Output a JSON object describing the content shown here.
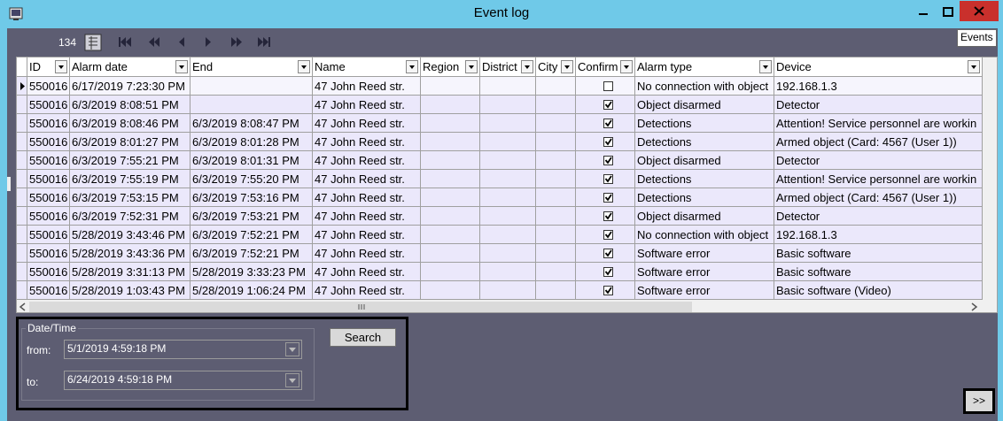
{
  "window": {
    "title": "Event log"
  },
  "toolbar": {
    "count": "134",
    "tooltip": "Events"
  },
  "table": {
    "columns": [
      "ID",
      "Alarm date",
      "End",
      "Name",
      "Region",
      "District",
      "City",
      "Confirm",
      "Alarm type",
      "Device"
    ],
    "rows": [
      [
        "550016",
        "6/17/2019 7:23:30 PM",
        null,
        "47 John Reed str.",
        null,
        null,
        null,
        false,
        "No connection with object",
        "192.168.1.3"
      ],
      [
        "550016",
        "6/3/2019 8:08:51 PM",
        null,
        "47 John Reed str.",
        null,
        null,
        null,
        true,
        "Object disarmed",
        "Detector"
      ],
      [
        "550016",
        "6/3/2019 8:08:46 PM",
        "6/3/2019 8:08:47 PM",
        "47 John Reed str.",
        null,
        null,
        null,
        true,
        "Detections",
        "Attention! Service personnel are workin"
      ],
      [
        "550016",
        "6/3/2019 8:01:27 PM",
        "6/3/2019 8:01:28 PM",
        "47 John Reed str.",
        null,
        null,
        null,
        true,
        "Detections",
        "Armed object (Card: 4567 (User 1))"
      ],
      [
        "550016",
        "6/3/2019 7:55:21 PM",
        "6/3/2019 8:01:31 PM",
        "47 John Reed str.",
        null,
        null,
        null,
        true,
        "Object disarmed",
        "Detector"
      ],
      [
        "550016",
        "6/3/2019 7:55:19 PM",
        "6/3/2019 7:55:20 PM",
        "47 John Reed str.",
        null,
        null,
        null,
        true,
        "Detections",
        "Attention! Service personnel are workin"
      ],
      [
        "550016",
        "6/3/2019 7:53:15 PM",
        "6/3/2019 7:53:16 PM",
        "47 John Reed str.",
        null,
        null,
        null,
        true,
        "Detections",
        "Armed object (Card: 4567 (User 1))"
      ],
      [
        "550016",
        "6/3/2019 7:52:31 PM",
        "6/3/2019 7:53:21 PM",
        "47 John Reed str.",
        null,
        null,
        null,
        true,
        "Object disarmed",
        "Detector"
      ],
      [
        "550016",
        "5/28/2019 3:43:46 PM",
        "6/3/2019 7:52:21 PM",
        "47 John Reed str.",
        null,
        null,
        null,
        true,
        "No connection with object",
        "192.168.1.3"
      ],
      [
        "550016",
        "5/28/2019 3:43:36 PM",
        "6/3/2019 7:52:21 PM",
        "47 John Reed str.",
        null,
        null,
        null,
        true,
        "Software error",
        "Basic software"
      ],
      [
        "550016",
        "5/28/2019 3:31:13 PM",
        "5/28/2019 3:33:23 PM",
        "47 John Reed str.",
        null,
        null,
        null,
        true,
        "Software error",
        "Basic software"
      ],
      [
        "550016",
        "5/28/2019 1:03:43 PM",
        "5/28/2019 1:06:24 PM",
        "47 John Reed str.",
        null,
        null,
        null,
        true,
        "Software error",
        "Basic software (Video)"
      ]
    ]
  },
  "filter": {
    "group_title": "Date/Time",
    "from_label": "from:",
    "from_value": "5/1/2019 4:59:18 PM",
    "to_label": "to:",
    "to_value": "6/24/2019 4:59:18 PM",
    "search_button": "Search"
  },
  "expand_button": ">>"
}
